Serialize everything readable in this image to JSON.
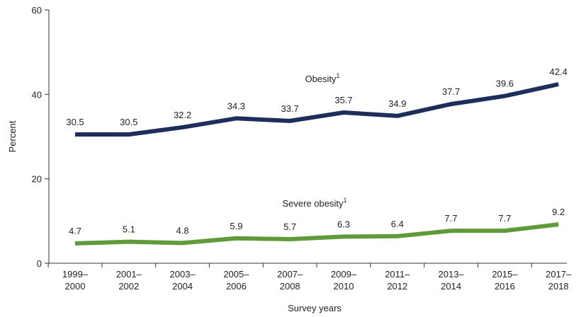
{
  "chart_data": {
    "type": "line",
    "categories": [
      [
        "1999–",
        "2000"
      ],
      [
        "2001–",
        "2002"
      ],
      [
        "2003–",
        "2004"
      ],
      [
        "2005–",
        "2006"
      ],
      [
        "2007–",
        "2008"
      ],
      [
        "2009–",
        "2010"
      ],
      [
        "2011–",
        "2012"
      ],
      [
        "2013–",
        "2014"
      ],
      [
        "2015–",
        "2016"
      ],
      [
        "2017–",
        "2018"
      ]
    ],
    "series": [
      {
        "key": "obesity",
        "name": "Obesity",
        "superscript": "1",
        "color": "#1f2d5a",
        "values": [
          30.5,
          30.5,
          32.2,
          34.3,
          33.7,
          35.7,
          34.9,
          37.7,
          39.6,
          42.4
        ],
        "labels": [
          "30.5",
          "30.5",
          "32.2",
          "34.3",
          "33.7",
          "35.7",
          "34.9",
          "37.7",
          "39.6",
          "42.4"
        ]
      },
      {
        "key": "severe",
        "name": "Severe obesity",
        "superscript": "1",
        "color": "#5f9a3b",
        "values": [
          4.7,
          5.1,
          4.8,
          5.9,
          5.7,
          6.3,
          6.4,
          7.7,
          7.7,
          9.2
        ],
        "labels": [
          "4.7",
          "5.1",
          "4.8",
          "5.9",
          "5.7",
          "6.3",
          "6.4",
          "7.7",
          "7.7",
          "9.2"
        ]
      }
    ],
    "title": "",
    "xlabel": "Survey years",
    "ylabel": "Percent",
    "ylim": [
      0,
      60
    ],
    "yticks": [
      "0",
      "20",
      "40",
      "60"
    ],
    "grid": false,
    "legend": "inline"
  }
}
